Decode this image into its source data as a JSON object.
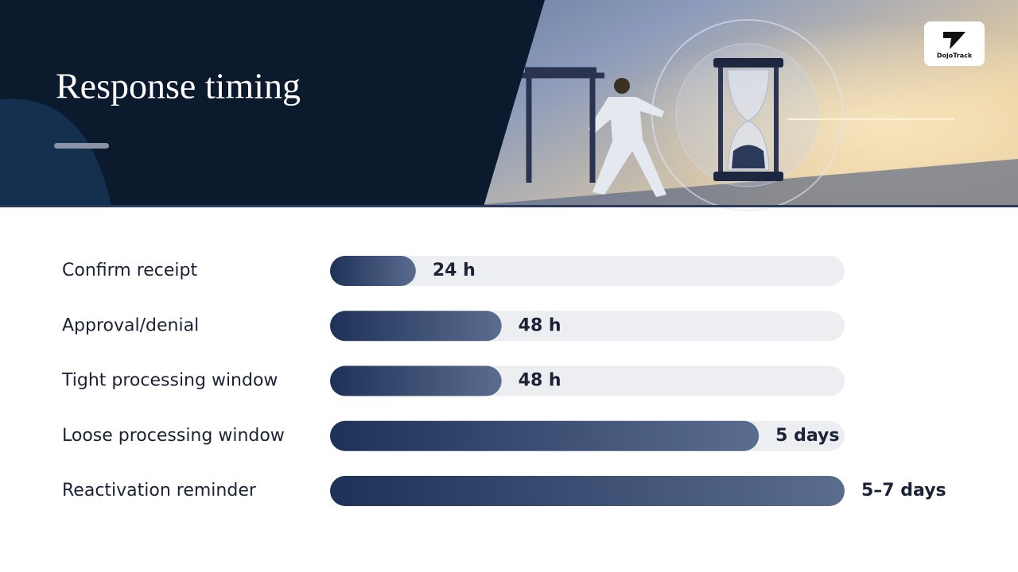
{
  "title": "Response timing",
  "logo": "DojoTrack",
  "chart_data": {
    "type": "bar",
    "orientation": "horizontal",
    "categories": [
      "Confirm receipt",
      "Approval/denial",
      "Tight processing window",
      "Loose processing window",
      "Reactivation reminder"
    ],
    "values": [
      24,
      48,
      48,
      120,
      144
    ],
    "value_labels": [
      "24 h",
      "48 h",
      "48 h",
      "5 days",
      "5–7 days"
    ],
    "xlim": [
      0,
      144
    ],
    "color": [
      "#1e3259",
      "#5a6d8f"
    ],
    "track_color": "#eceef2"
  }
}
